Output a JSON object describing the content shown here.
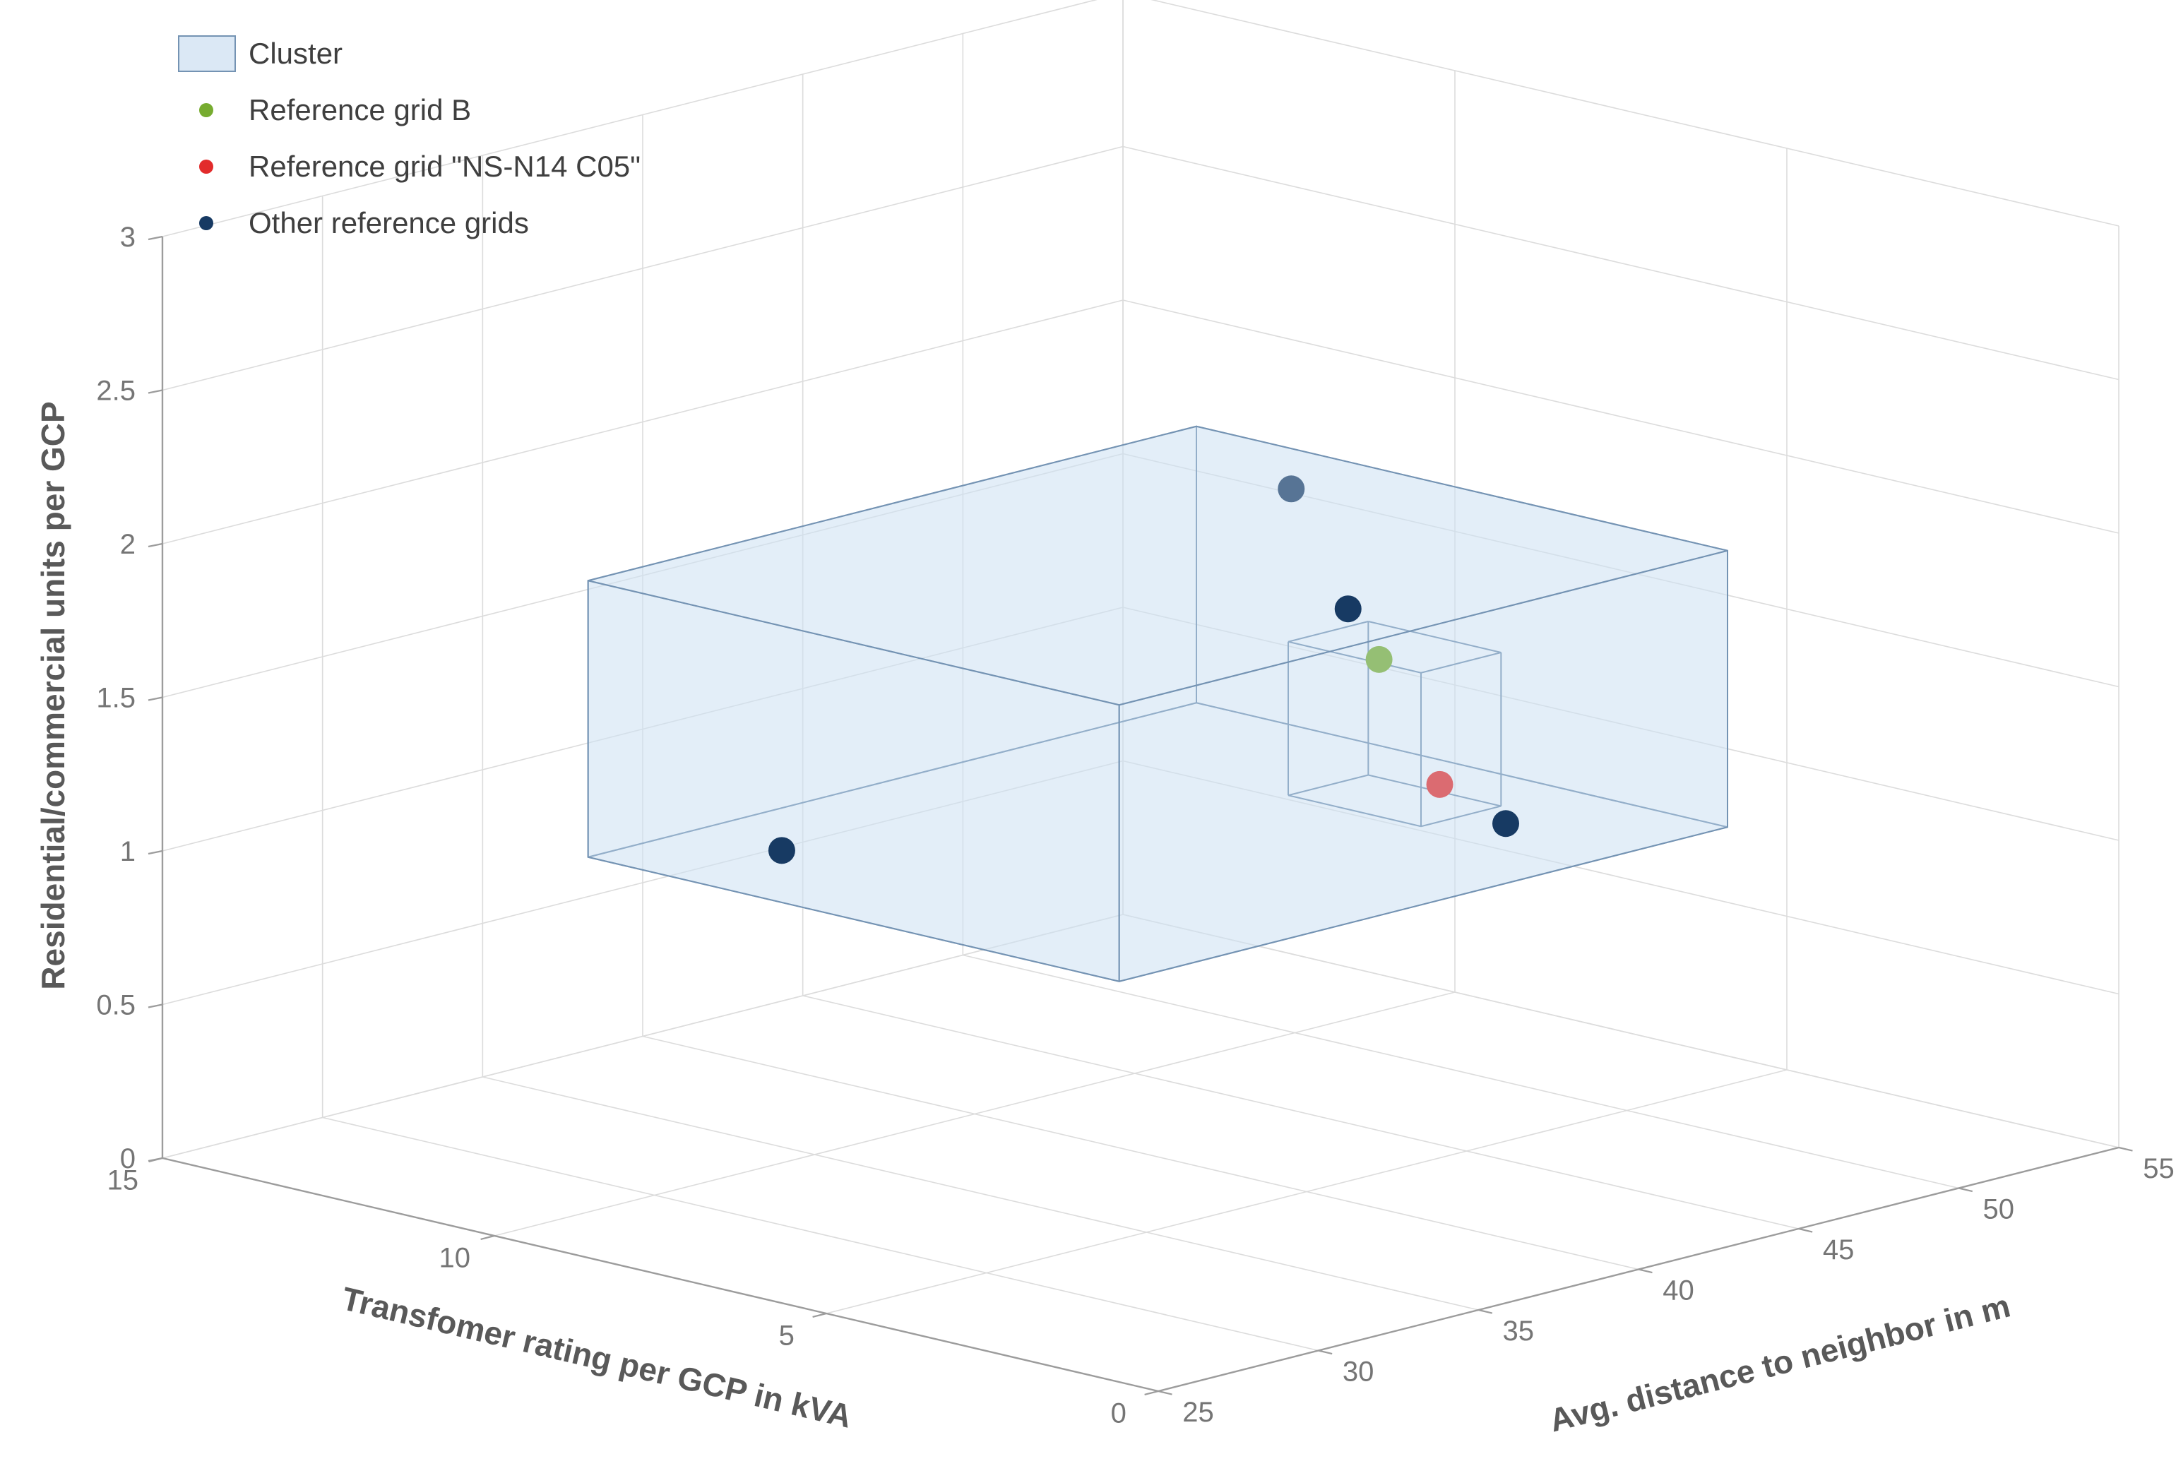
{
  "page": {
    "background": "#ffffff"
  },
  "legend": {
    "position": "top-left",
    "items": [
      {
        "label": "Cluster",
        "marker": "rect",
        "fill": "#dbe8f5",
        "stroke": "#7493b3"
      },
      {
        "label": "Reference grid B",
        "marker": "dot",
        "color": "#77ac30"
      },
      {
        "label": "Reference grid \"NS-N14 C05\"",
        "marker": "dot",
        "color": "#e22b2b"
      },
      {
        "label": "Other reference grids",
        "marker": "dot",
        "color": "#173a63"
      }
    ]
  },
  "chart_data": {
    "type": "scatter",
    "subtype": "scatter3d",
    "title": "",
    "grid": true,
    "legend_position": "top-left",
    "axes": {
      "x": {
        "label": "Transfomer rating per GCP in kVA",
        "range": [
          0,
          15
        ],
        "ticks": [
          0,
          5,
          10,
          15
        ],
        "direction": "reversed"
      },
      "y": {
        "label": "Avg. distance to neighbor in m",
        "range": [
          25,
          55
        ],
        "ticks": [
          25,
          30,
          35,
          40,
          45,
          50,
          55
        ]
      },
      "z": {
        "label": "Residential/commercial units per GCP",
        "range": [
          0,
          3
        ],
        "ticks": [
          0,
          0.5,
          1,
          1.5,
          2,
          2.5,
          3
        ]
      }
    },
    "cluster_box": {
      "name": "Cluster",
      "x": [
        3,
        11
      ],
      "y": [
        30,
        49
      ],
      "z": [
        1.05,
        1.95
      ],
      "fill": "#cfe2f3",
      "fill_opacity": 0.35,
      "stroke": "#7493b3"
    },
    "highlight_box": {
      "name": "selected-region",
      "x": [
        4,
        6
      ],
      "y": [
        41.5,
        44
      ],
      "z": [
        1.2,
        1.7
      ],
      "stroke": "#7493b3"
    },
    "series": [
      {
        "name": "Reference grid B",
        "color": "#77ac30",
        "points": [
          {
            "x": 5.5,
            "y": 43.3,
            "z": 1.62,
            "occluded": true
          }
        ]
      },
      {
        "name": "Reference grid \"NS-N14 C05\"",
        "color": "#e22b2b",
        "points": [
          {
            "x": 4.2,
            "y": 42.5,
            "z": 1.3,
            "occluded": true
          }
        ]
      },
      {
        "name": "Other reference grids",
        "color": "#173a63",
        "points": [
          {
            "x": 7.6,
            "y": 29.0,
            "z": 1.27,
            "occluded": false
          },
          {
            "x": 3.7,
            "y": 38.6,
            "z": 2.0,
            "occluded": false
          },
          {
            "x": 2.0,
            "y": 40.0,
            "z": 1.35,
            "occluded": false
          },
          {
            "x": 8.8,
            "y": 47.4,
            "z": 1.9,
            "occluded": true
          }
        ]
      }
    ]
  }
}
